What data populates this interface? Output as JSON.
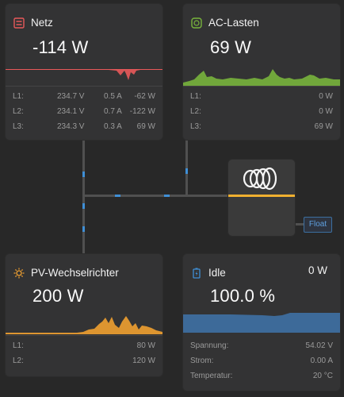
{
  "grid": {
    "title": "Netz",
    "value": "-114 W",
    "phases": [
      {
        "label": "L1:",
        "voltage": "234.7 V",
        "current": "0.5 A",
        "power": "-62 W"
      },
      {
        "label": "L2:",
        "voltage": "234.1 V",
        "current": "0.7 A",
        "power": "-122 W"
      },
      {
        "label": "L3:",
        "voltage": "234.3 V",
        "current": "0.3 A",
        "power": "69 W"
      }
    ],
    "color": "#e8595a"
  },
  "ac_loads": {
    "title": "AC-Lasten",
    "value": "69 W",
    "phases": [
      {
        "label": "L1:",
        "power": "0 W"
      },
      {
        "label": "L2:",
        "power": "0 W"
      },
      {
        "label": "L3:",
        "power": "69 W"
      }
    ],
    "color": "#78b43c"
  },
  "pv_inverter": {
    "title": "PV-Wechselrichter",
    "value": "200 W",
    "phases": [
      {
        "label": "L1:",
        "power": "80 W"
      },
      {
        "label": "L2:",
        "power": "120 W"
      }
    ],
    "color": "#f0a030"
  },
  "battery": {
    "title": "Idle",
    "power": "0 W",
    "soc": "100.0 %",
    "rows": [
      {
        "label": "Spannung:",
        "value": "54.02 V"
      },
      {
        "label": "Strom:",
        "value": "0.00 A"
      },
      {
        "label": "Temperatur:",
        "value": "20 °C"
      }
    ],
    "color": "#3f8fd6"
  },
  "inverter": {
    "state": "Float",
    "accent": "#f0b030"
  },
  "icons": {
    "grid": "grid-meter-icon",
    "ac_loads": "ac-outlet-icon",
    "pv": "sun-icon",
    "battery": "battery-icon",
    "inverter": "victron-logo-icon"
  }
}
